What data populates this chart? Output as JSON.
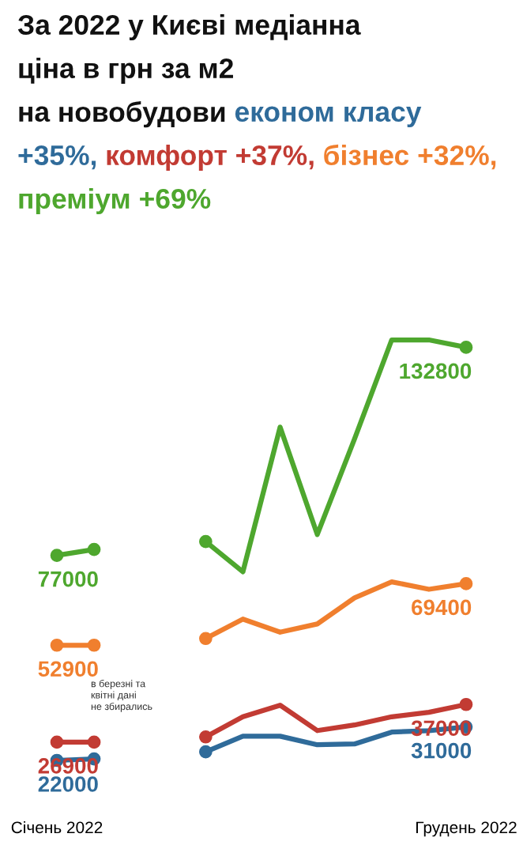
{
  "chart_data": {
    "type": "line",
    "title": "За 2022 у Києві медіанна\nціна в грн за м2\nна новобудови",
    "categories": [
      "Січень 2022",
      null,
      null,
      null,
      null,
      null,
      null,
      null,
      null,
      null,
      null,
      "Грудень 2022"
    ],
    "series": [
      {
        "name": "економ класу +35%,",
        "color": "#2f6b9a",
        "values": [
          22000,
          22400,
          null,
          null,
          24300,
          28500,
          28500,
          26200,
          26400,
          29600,
          30000,
          31000
        ],
        "value_labels": [
          "22000",
          null,
          null,
          null,
          null,
          null,
          null,
          null,
          null,
          null,
          null,
          "31000"
        ]
      },
      {
        "name": "комфорт +37%,",
        "color": "#c23b33",
        "values": [
          26900,
          26900,
          null,
          null,
          28300,
          33700,
          36800,
          30000,
          31500,
          33700,
          34900,
          37000
        ],
        "value_labels": [
          "26900",
          null,
          null,
          null,
          null,
          null,
          null,
          null,
          null,
          null,
          null,
          "37000"
        ]
      },
      {
        "name": "бізнес +32%,",
        "color": "#f07f2e",
        "values": [
          52900,
          52900,
          null,
          null,
          54700,
          59900,
          56400,
          58600,
          65600,
          69900,
          67900,
          69400
        ],
        "value_labels": [
          "52900",
          null,
          null,
          null,
          null,
          null,
          null,
          null,
          null,
          null,
          null,
          "69400"
        ]
      },
      {
        "name": "преміум +69%",
        "color": "#4ea72e",
        "values": [
          77000,
          78600,
          null,
          null,
          80700,
          72600,
          111400,
          82600,
          108200,
          134800,
          134800,
          132800
        ],
        "value_labels": [
          "77000",
          null,
          null,
          null,
          null,
          null,
          null,
          null,
          null,
          null,
          null,
          "132800"
        ]
      }
    ],
    "tick_labels": "x",
    "grid": false,
    "line_style": "solid",
    "annotations": [
      "в березні та\nквітні дані\nне збирались"
    ]
  }
}
